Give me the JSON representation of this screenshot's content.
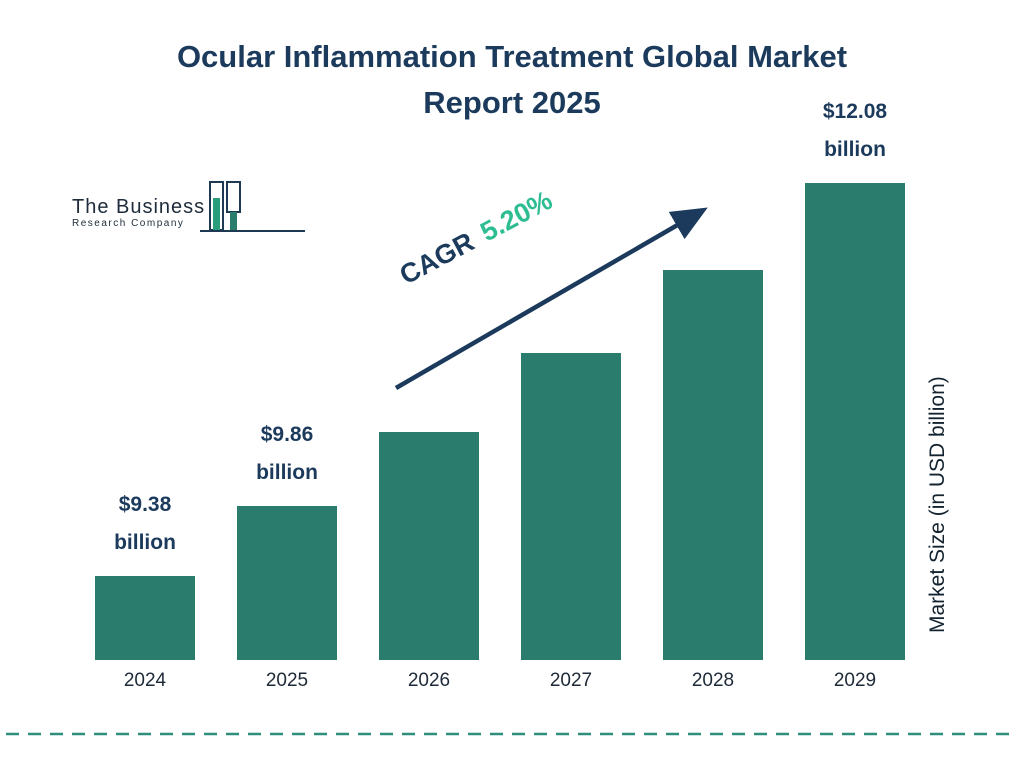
{
  "title": {
    "line1": "Ocular Inflammation Treatment Global Market",
    "line2": "Report 2025"
  },
  "logo": {
    "name_top": "The Business",
    "name_bottom": "Research Company"
  },
  "cagr": {
    "label": "CAGR",
    "value": "5.20%"
  },
  "y_axis_label": "Market Size (in USD billion)",
  "colors": {
    "bar": "#2a7c6d",
    "navy": "#1b3a5c",
    "cagr_green": "#2ebd92",
    "dashed_rule": "#2f8f7d"
  },
  "chart_data": {
    "type": "bar",
    "title": "Ocular Inflammation Treatment Global Market Report 2025",
    "categories": [
      "2024",
      "2025",
      "2026",
      "2027",
      "2028",
      "2029"
    ],
    "values": [
      9.38,
      9.86,
      10.37,
      10.91,
      11.48,
      12.08
    ],
    "bar_labels": [
      "$9.38 billion",
      "$9.86 billion",
      null,
      null,
      null,
      "$12.08 billion"
    ],
    "xlabel": "",
    "ylabel": "Market Size (in USD billion)",
    "ylim": [
      8.8,
      12.1
    ],
    "grid": false,
    "legend": false,
    "annotations": [
      "CAGR 5.20%"
    ],
    "bar_color": "#2a7c6d"
  }
}
